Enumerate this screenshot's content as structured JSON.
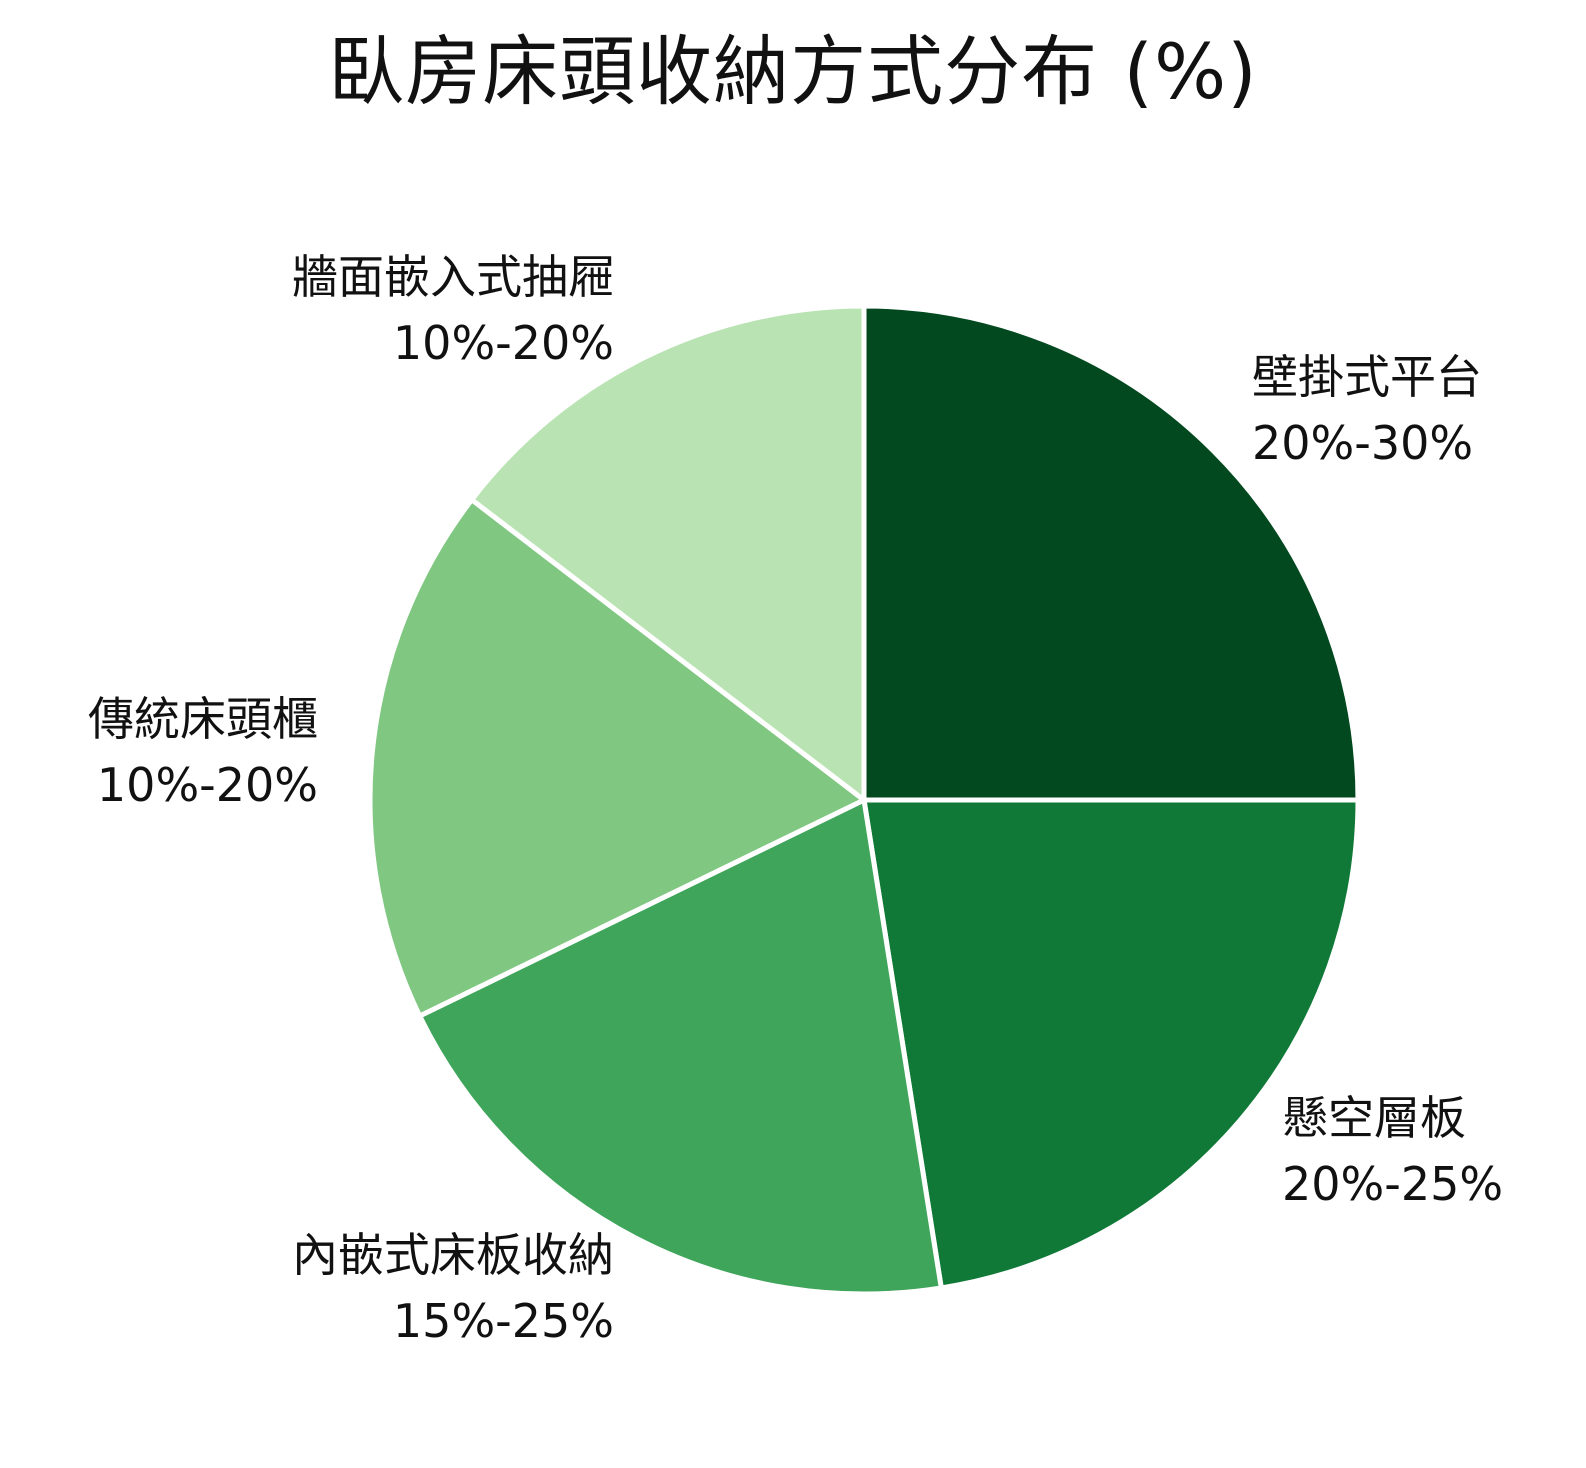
{
  "chart_data": {
    "type": "pie",
    "title": "臥房床頭收納方式分布 (%)",
    "start_angle_deg": 0,
    "direction": "clockwise",
    "slices": [
      {
        "label": "壁掛式平台",
        "range": "20%-30%",
        "value": 25.0,
        "color": "#02491f"
      },
      {
        "label": "懸空層板",
        "range": "20%-25%",
        "value": 22.5,
        "color": "#117937"
      },
      {
        "label": "內嵌式床板收納",
        "range": "15%-25%",
        "value": 20.3,
        "color": "#3ea55a"
      },
      {
        "label": "傳統床頭櫃",
        "range": "10%-20%",
        "value": 17.6,
        "color": "#80c782"
      },
      {
        "label": "牆面嵌入式抽屜",
        "range": "10%-20%",
        "value": 14.6,
        "color": "#b9e3b3"
      }
    ],
    "legend": "none",
    "labels_outside": true
  }
}
